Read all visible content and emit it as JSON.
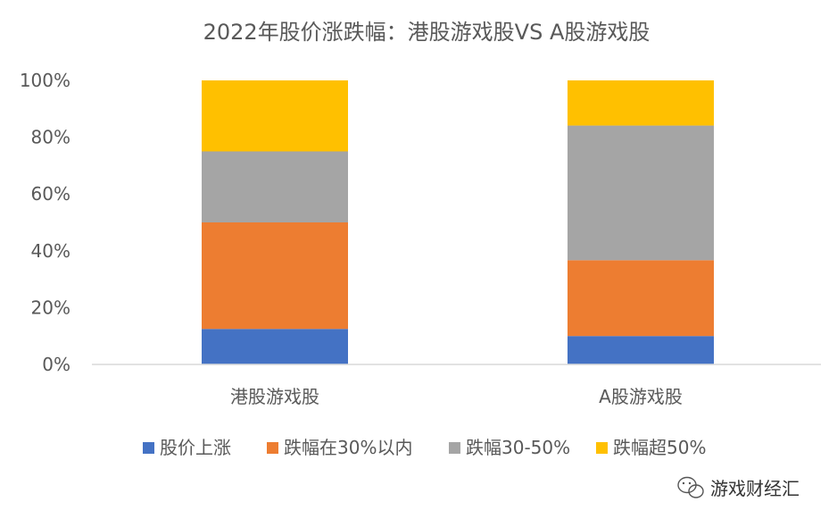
{
  "watermark": "游戏财经汇",
  "chart_data": {
    "type": "bar",
    "stacked": true,
    "title": "2022年股价涨跌幅：港股游戏股VS A股游戏股",
    "categories": [
      "港股游戏股",
      "A股游戏股"
    ],
    "y_ticks": [
      "0%",
      "20%",
      "40%",
      "60%",
      "80%",
      "100%"
    ],
    "ylim": [
      0,
      100
    ],
    "grid": false,
    "legend_position": "bottom",
    "series": [
      {
        "name": "股价上涨",
        "color": "#4472C4",
        "values": [
          12.5,
          10.0
        ]
      },
      {
        "name": "跌幅在30%以内",
        "color": "#ED7D31",
        "values": [
          37.5,
          26.7
        ]
      },
      {
        "name": "跌幅30-50%",
        "color": "#A5A5A5",
        "values": [
          25.0,
          47.4
        ]
      },
      {
        "name": "跌幅超50%",
        "color": "#FFC000",
        "values": [
          25.0,
          15.9
        ]
      }
    ]
  }
}
